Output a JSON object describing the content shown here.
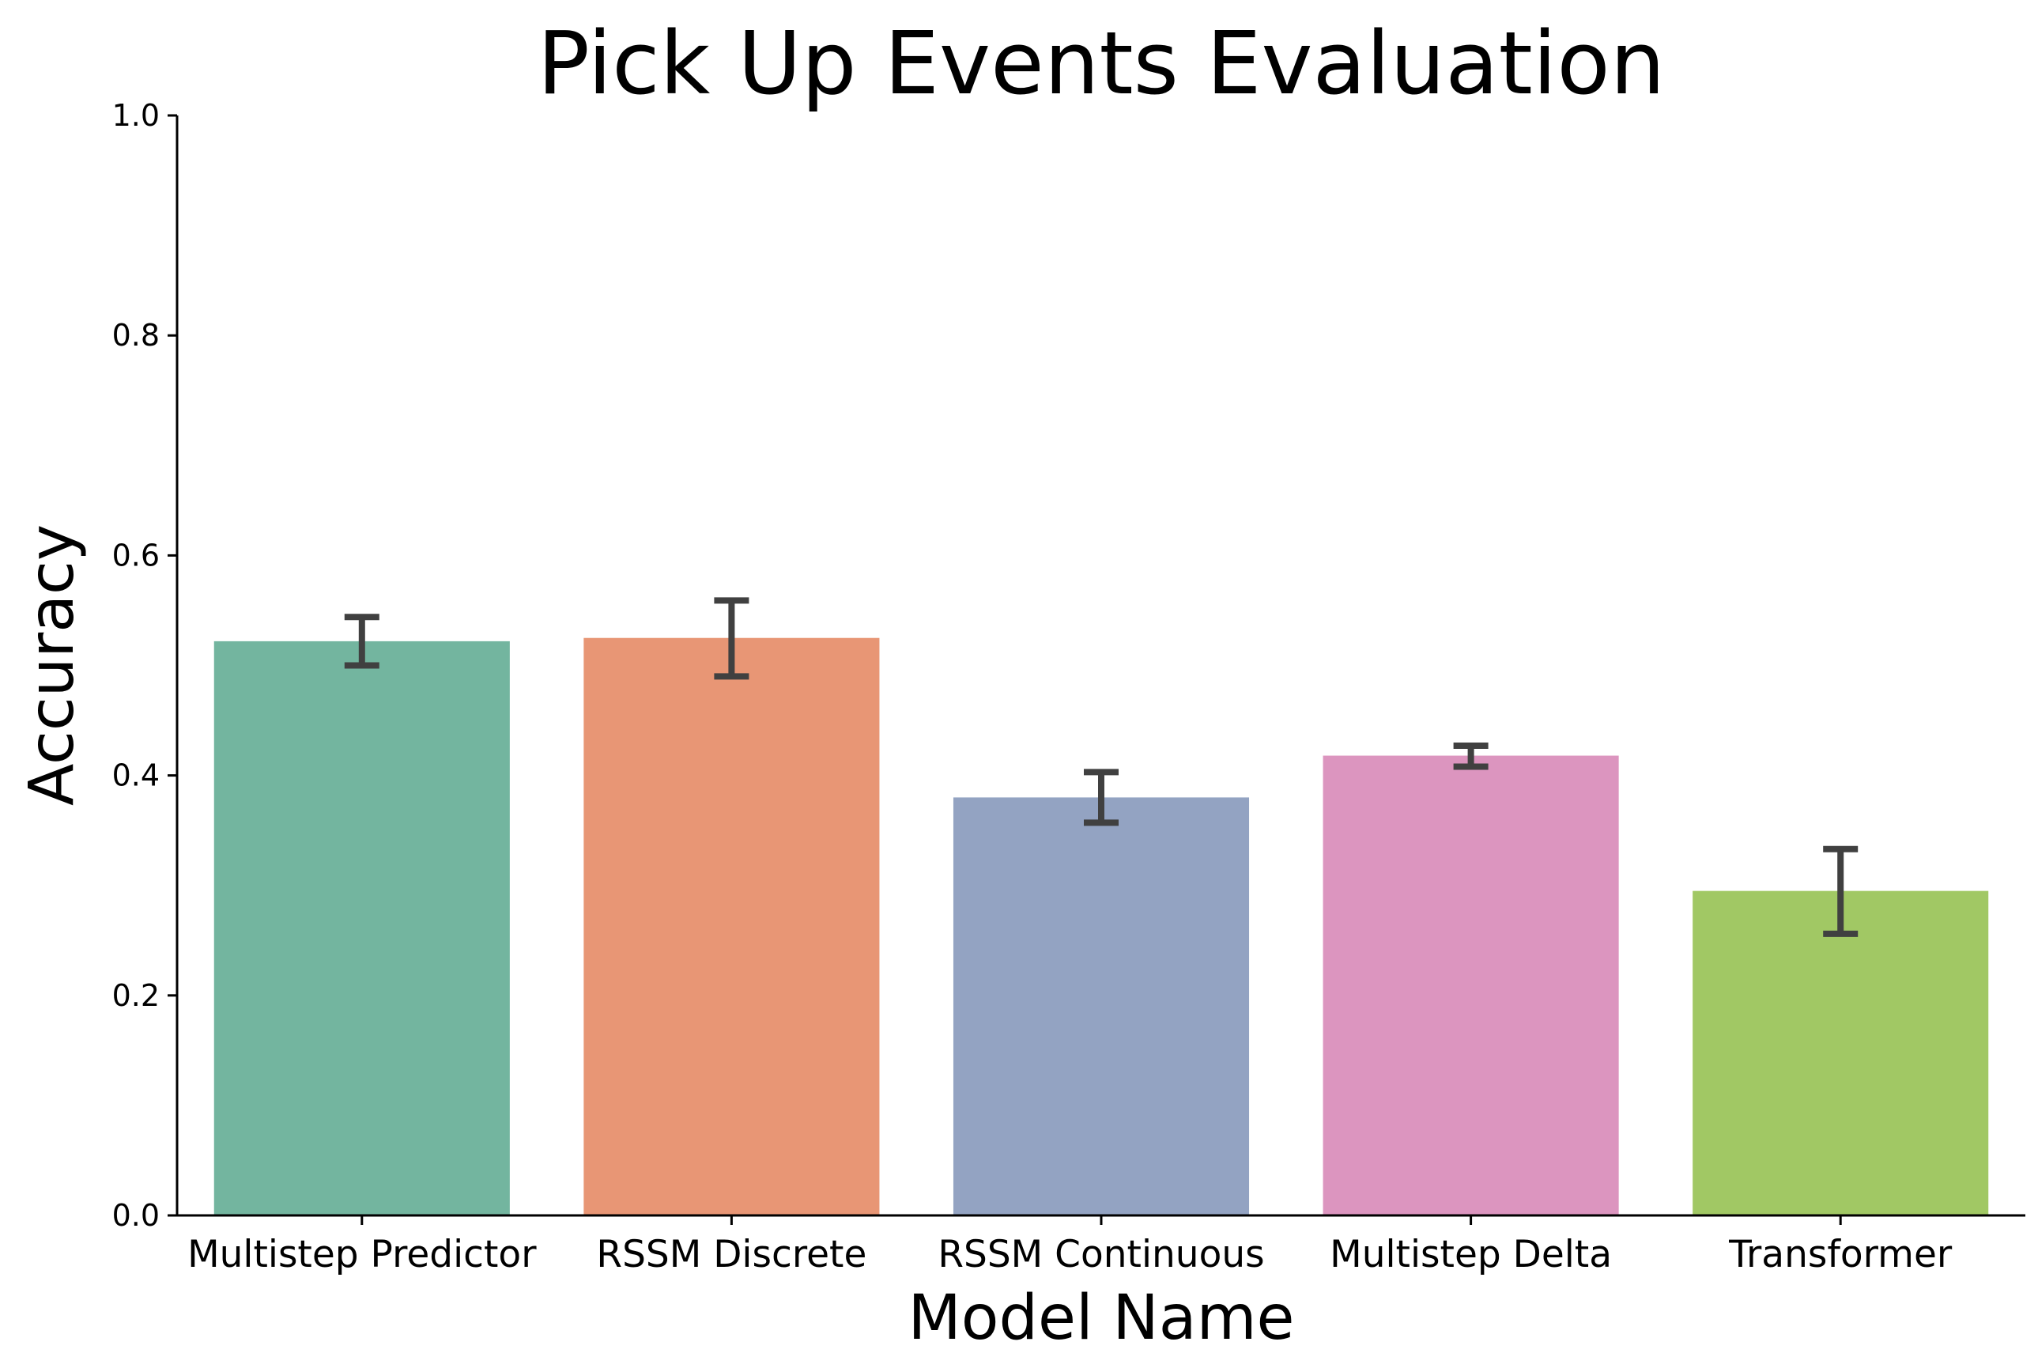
{
  "chart_data": {
    "type": "bar",
    "title": "Pick Up Events Evaluation",
    "xlabel": "Model Name",
    "ylabel": "Accuracy",
    "ylim": [
      0,
      1.0
    ],
    "yticks": [
      "0.0",
      "0.2",
      "0.4",
      "0.6",
      "0.8",
      "1.0"
    ],
    "categories": [
      "Multistep Predictor",
      "RSSM Discrete",
      "RSSM Continuous",
      "Multistep Delta",
      "Transformer"
    ],
    "values": [
      0.522,
      0.525,
      0.38,
      0.418,
      0.295
    ],
    "error_low": [
      0.5,
      0.49,
      0.357,
      0.408,
      0.256
    ],
    "error_high": [
      0.544,
      0.559,
      0.403,
      0.427,
      0.333
    ],
    "colors": [
      "#73b59f",
      "#e89675",
      "#93a3c2",
      "#dc95bf",
      "#a1c864"
    ],
    "error_color": "#404040",
    "grid": false
  }
}
